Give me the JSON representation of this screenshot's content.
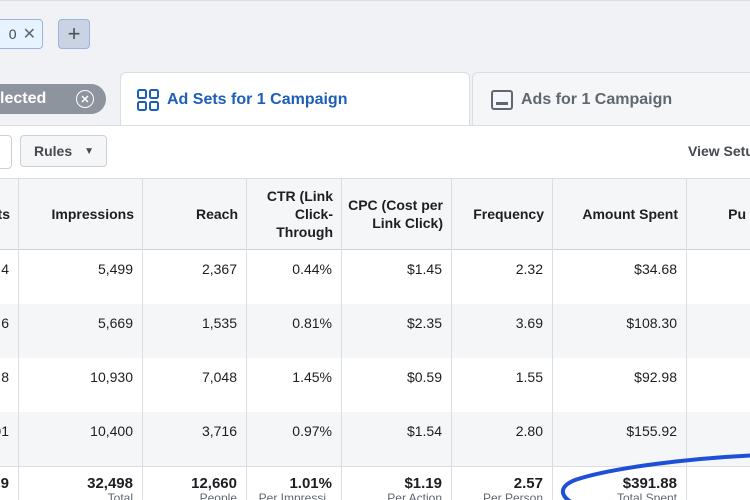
{
  "filters": {
    "chip_value": "0",
    "chip_remove_icon": "close-icon",
    "add_icon": "plus-icon"
  },
  "tabs": {
    "selected_pill": "lected",
    "ad_sets": "Ad Sets for 1 Campaign",
    "ads": "Ads for 1 Campaign"
  },
  "toolbar": {
    "rules_label": "Rules",
    "view_setup": "View Setu"
  },
  "table": {
    "headers": {
      "results": "ts",
      "impressions": "Impressions",
      "reach": "Reach",
      "ctr_line1": "CTR (Link",
      "ctr_line2": "Click-",
      "ctr_line3": "Through",
      "cpc_line1": "CPC (Cost per",
      "cpc_line2": "Link Click)",
      "frequency": "Frequency",
      "amount_spent": "Amount Spent",
      "cut_line1": "",
      "cut_line2": "Pu"
    },
    "rows": [
      {
        "results": "4",
        "impressions": "5,499",
        "reach": "2,367",
        "ctr": "0.44%",
        "cpc": "$1.45",
        "frequency": "2.32",
        "amount": "$34.68"
      },
      {
        "results": "6",
        "impressions": "5,669",
        "reach": "1,535",
        "ctr": "0.81%",
        "cpc": "$2.35",
        "frequency": "3.69",
        "amount": "$108.30"
      },
      {
        "results": "8",
        "impressions": "10,930",
        "reach": "7,048",
        "ctr": "1.45%",
        "cpc": "$0.59",
        "frequency": "1.55",
        "amount": "$92.98"
      },
      {
        "results": "01",
        "impressions": "10,400",
        "reach": "3,716",
        "ctr": "0.97%",
        "cpc": "$1.54",
        "frequency": "2.80",
        "amount": "$155.92"
      }
    ],
    "total": {
      "results": "9",
      "impressions": "32,498",
      "reach": "12,660",
      "ctr": "1.01%",
      "cpc": "$1.19",
      "frequency": "2.57",
      "amount": "$391.88",
      "impressions_sub": "Total",
      "reach_sub": "People",
      "ctr_sub": "Per Impressi",
      "cpc_sub": "Per Action",
      "frequency_sub": "Per Person",
      "amount_sub": "Total Spent"
    }
  },
  "colors": {
    "accent": "#1d5fb8",
    "annotation": "#1d4fd8"
  }
}
